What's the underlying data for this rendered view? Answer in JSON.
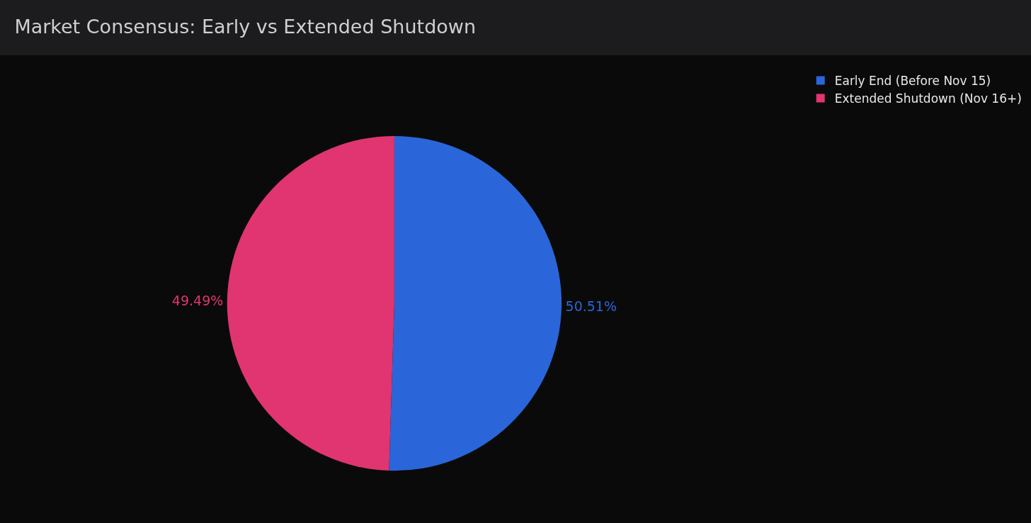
{
  "chart_data": {
    "type": "pie",
    "title": "Market Consensus: Early vs Extended Shutdown",
    "categories": [
      "Early End (Before Nov 15)",
      "Extended Shutdown (Nov 16+)"
    ],
    "values": [
      50.51,
      49.49
    ],
    "colors": [
      "#2a66d9",
      "#e03570"
    ],
    "value_labels": [
      "50.51%",
      "49.49%"
    ],
    "legend": "top right"
  }
}
